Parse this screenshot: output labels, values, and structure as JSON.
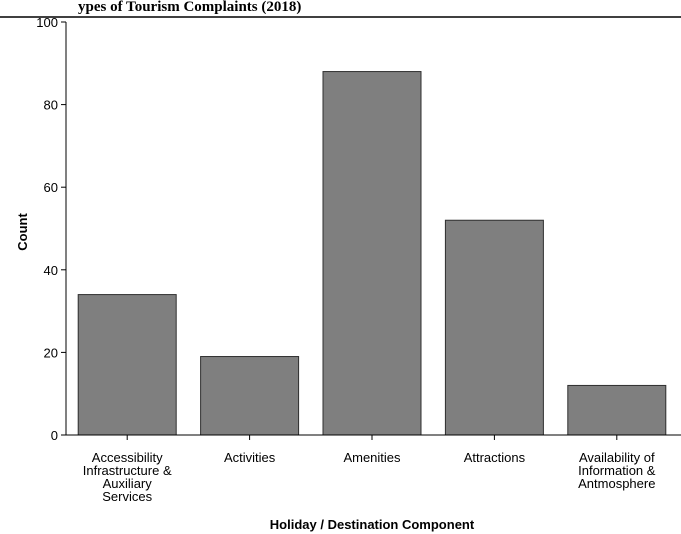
{
  "header": {
    "title_fragment": "ypes of Tourism Complaints (2018)"
  },
  "chart_data": {
    "type": "bar",
    "categories": [
      [
        "Accessibility",
        "Infrastructure &",
        "Auxiliary",
        "Services"
      ],
      [
        "Activities"
      ],
      [
        "Amenities"
      ],
      [
        "Attractions"
      ],
      [
        "Availability of",
        "Information &",
        "Antmosphere"
      ]
    ],
    "values": [
      34,
      19,
      88,
      52,
      12
    ],
    "ylabel": "Count",
    "xlabel": "Holiday / Destination Component",
    "ylim": [
      0,
      100
    ],
    "yticks": [
      0,
      20,
      40,
      60,
      80,
      100
    ],
    "bar_color": "#7f7f7f",
    "bar_edge_color": "#2f2f2f",
    "grid": false
  }
}
